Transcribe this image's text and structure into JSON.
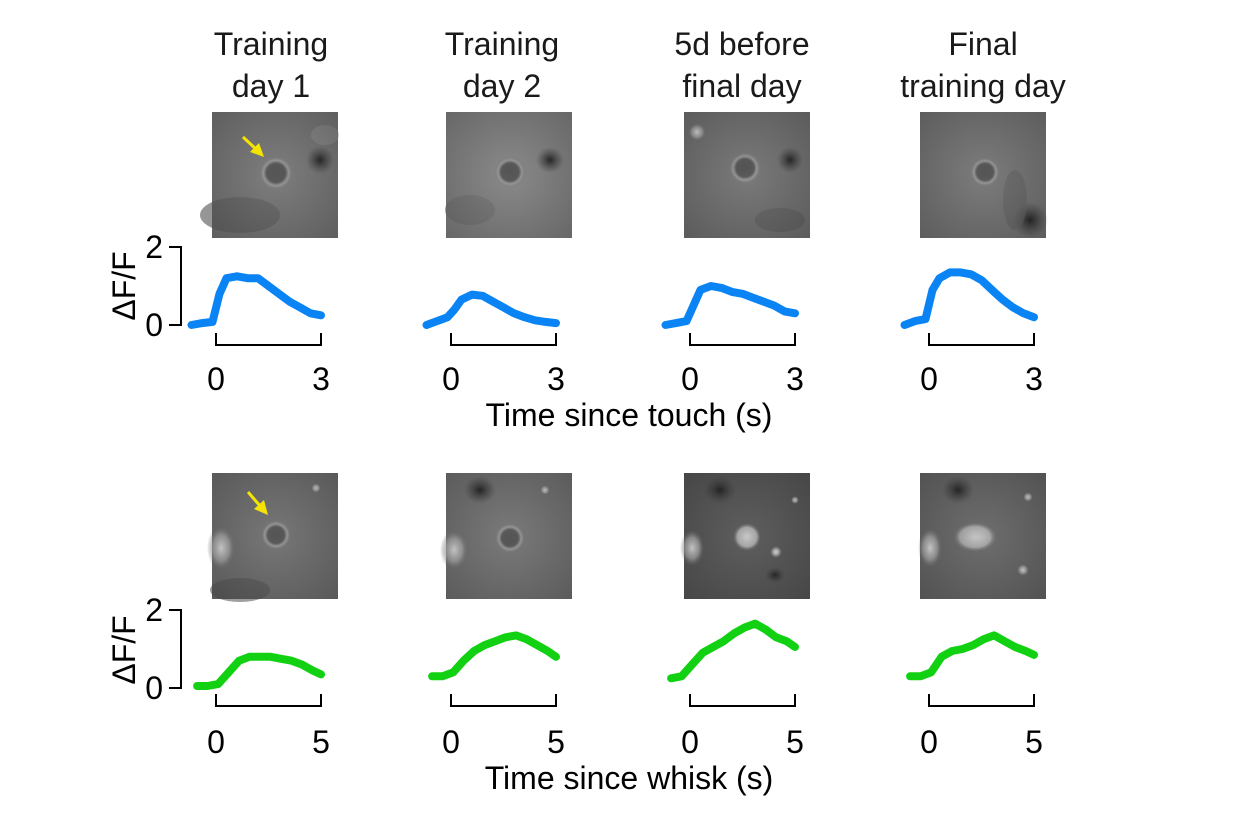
{
  "column_titles": [
    [
      "Training",
      "day 1"
    ],
    [
      "Training",
      "day 2"
    ],
    [
      "5d before",
      "final day"
    ],
    [
      "Final",
      "training day"
    ]
  ],
  "colors": {
    "touch_trace": "#0a84f5",
    "whisk_trace": "#12d112",
    "arrow": "#f5e400",
    "axis": "#000000"
  },
  "icons": [
    "yellow-arrow-icon"
  ],
  "chart_data": [
    {
      "type": "line",
      "ylabel": "ΔF/F",
      "xlabel": "Time since touch (s)",
      "xlim": [
        -0.7,
        3.0
      ],
      "ylim": [
        0,
        2
      ],
      "xticks": [
        "0",
        "3"
      ],
      "yticks": [
        "0",
        "2"
      ],
      "series": [
        {
          "x": [
            -0.7,
            -0.4,
            -0.1,
            0.1,
            0.3,
            0.6,
            0.9,
            1.2,
            1.5,
            1.8,
            2.1,
            2.4,
            2.7,
            3.0
          ],
          "y": [
            0.0,
            0.05,
            0.08,
            0.8,
            1.2,
            1.25,
            1.2,
            1.2,
            1.0,
            0.8,
            0.6,
            0.45,
            0.3,
            0.25
          ]
        },
        {
          "x": [
            -0.7,
            -0.4,
            -0.1,
            0.1,
            0.3,
            0.6,
            0.9,
            1.2,
            1.5,
            1.8,
            2.1,
            2.4,
            2.7,
            3.0
          ],
          "y": [
            0.0,
            0.1,
            0.2,
            0.4,
            0.65,
            0.78,
            0.75,
            0.6,
            0.45,
            0.3,
            0.2,
            0.12,
            0.08,
            0.05
          ]
        },
        {
          "x": [
            -0.7,
            -0.4,
            -0.1,
            0.1,
            0.3,
            0.6,
            0.9,
            1.2,
            1.5,
            1.8,
            2.1,
            2.4,
            2.7,
            3.0
          ],
          "y": [
            0.0,
            0.05,
            0.1,
            0.5,
            0.9,
            1.0,
            0.95,
            0.85,
            0.8,
            0.7,
            0.6,
            0.5,
            0.35,
            0.3
          ]
        },
        {
          "x": [
            -0.7,
            -0.4,
            -0.1,
            0.1,
            0.3,
            0.6,
            0.9,
            1.2,
            1.5,
            1.8,
            2.1,
            2.4,
            2.7,
            3.0
          ],
          "y": [
            0.0,
            0.1,
            0.15,
            0.9,
            1.2,
            1.35,
            1.35,
            1.3,
            1.15,
            0.9,
            0.65,
            0.45,
            0.3,
            0.2
          ]
        }
      ]
    },
    {
      "type": "line",
      "ylabel": "ΔF/F",
      "xlabel": "Time since whisk (s)",
      "xlim": [
        -0.9,
        5.0
      ],
      "ylim": [
        0,
        2
      ],
      "xticks": [
        "0",
        "5"
      ],
      "yticks": [
        "0",
        "2"
      ],
      "series": [
        {
          "x": [
            -0.9,
            -0.4,
            0.1,
            0.6,
            1.1,
            1.6,
            2.1,
            2.6,
            3.1,
            3.6,
            4.1,
            4.6,
            5.0
          ],
          "y": [
            0.05,
            0.05,
            0.1,
            0.4,
            0.7,
            0.8,
            0.8,
            0.8,
            0.75,
            0.7,
            0.6,
            0.45,
            0.35
          ]
        },
        {
          "x": [
            -0.9,
            -0.4,
            0.1,
            0.6,
            1.1,
            1.6,
            2.1,
            2.6,
            3.1,
            3.6,
            4.1,
            4.6,
            5.0
          ],
          "y": [
            0.3,
            0.3,
            0.4,
            0.7,
            0.95,
            1.1,
            1.2,
            1.3,
            1.35,
            1.25,
            1.1,
            0.95,
            0.8
          ]
        },
        {
          "x": [
            -0.9,
            -0.4,
            0.1,
            0.6,
            1.1,
            1.6,
            2.1,
            2.6,
            3.1,
            3.6,
            4.1,
            4.6,
            5.0
          ],
          "y": [
            0.25,
            0.3,
            0.6,
            0.9,
            1.05,
            1.2,
            1.4,
            1.55,
            1.65,
            1.5,
            1.3,
            1.2,
            1.05
          ]
        },
        {
          "x": [
            -0.9,
            -0.4,
            0.1,
            0.6,
            1.1,
            1.6,
            2.1,
            2.6,
            3.1,
            3.6,
            4.1,
            4.6,
            5.0
          ],
          "y": [
            0.3,
            0.3,
            0.4,
            0.8,
            0.95,
            1.0,
            1.1,
            1.25,
            1.35,
            1.2,
            1.05,
            0.95,
            0.85
          ]
        }
      ]
    }
  ]
}
